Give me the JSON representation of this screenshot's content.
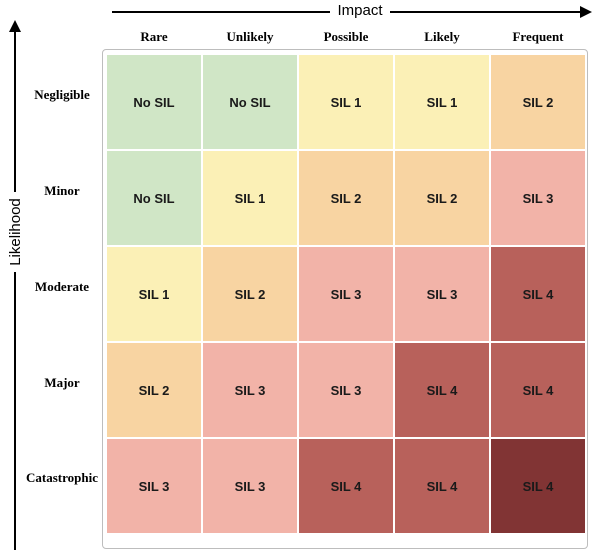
{
  "axes": {
    "x_title": "Impact",
    "y_title": "Likelihood"
  },
  "columns": [
    "Rare",
    "Unlikely",
    "Possible",
    "Likely",
    "Frequent"
  ],
  "rows": [
    "Negligible",
    "Minor",
    "Moderate",
    "Major",
    "Catastrophic"
  ],
  "cells": [
    [
      "No SIL",
      "No SIL",
      "SIL 1",
      "SIL 1",
      "SIL 2"
    ],
    [
      "No SIL",
      "SIL 1",
      "SIL 2",
      "SIL 2",
      "SIL 3"
    ],
    [
      "SIL 1",
      "SIL 2",
      "SIL 3",
      "SIL 3",
      "SIL 4"
    ],
    [
      "SIL 2",
      "SIL 3",
      "SIL 3",
      "SIL 4",
      "SIL 4"
    ],
    [
      "SIL 3",
      "SIL 3",
      "SIL 4",
      "SIL 4",
      "SIL 4"
    ]
  ],
  "cell_colors": [
    [
      "#d0e6c6",
      "#d0e6c6",
      "#fbf0b6",
      "#fbf0b6",
      "#f8d4a2"
    ],
    [
      "#d0e6c6",
      "#fbf0b6",
      "#f8d4a2",
      "#f8d4a2",
      "#f2b3a8"
    ],
    [
      "#fbf0b6",
      "#f8d4a2",
      "#f2b3a8",
      "#f2b3a8",
      "#b8615b"
    ],
    [
      "#f8d4a2",
      "#f2b3a8",
      "#f2b3a8",
      "#b8615b",
      "#b8615b"
    ],
    [
      "#f2b3a8",
      "#f2b3a8",
      "#b8615b",
      "#b8615b",
      "#813434"
    ]
  ]
}
